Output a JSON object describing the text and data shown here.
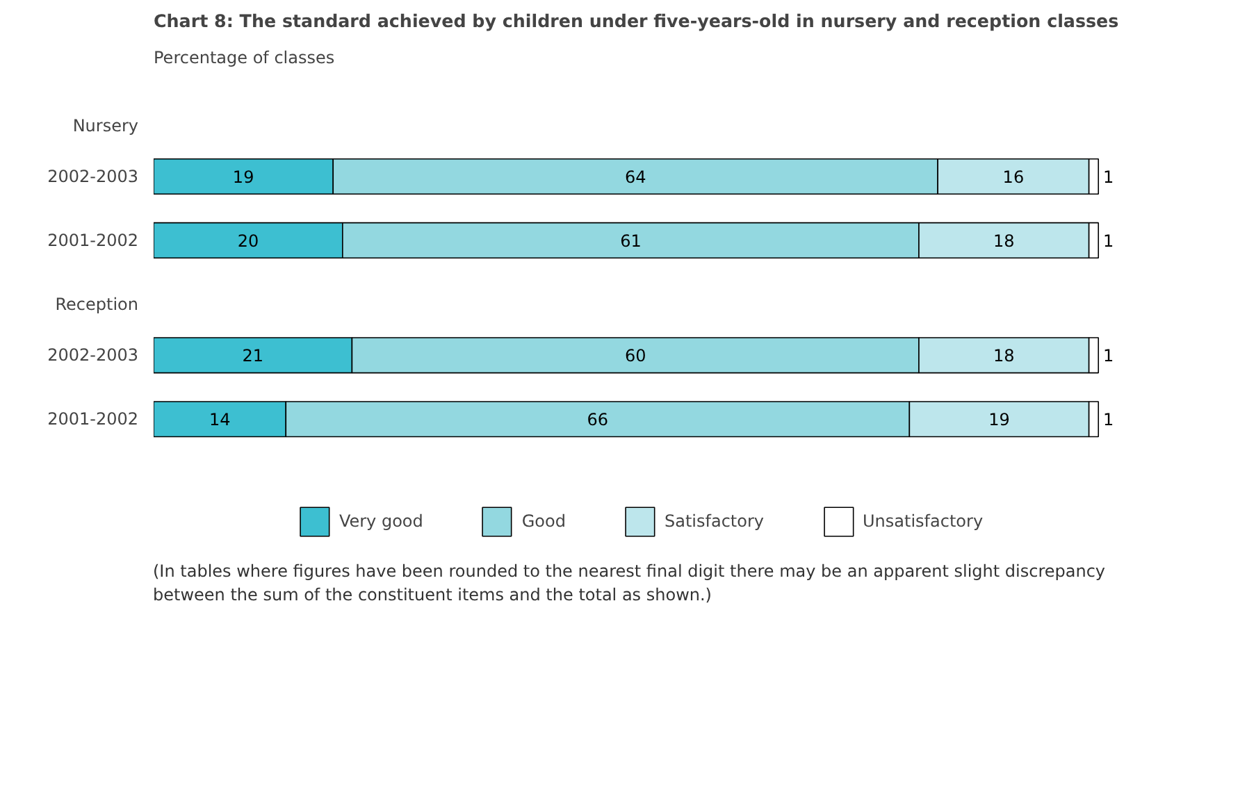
{
  "chart_data": {
    "type": "bar",
    "orientation": "horizontal",
    "stacked": true,
    "data_labels": true,
    "legend": "bottom",
    "grid": false,
    "title": "Chart 8:  The standard achieved by children under five-years-old in nursery and reception classes",
    "ylabel": "Percentage of classes",
    "categories": [
      "2002-2003",
      "2001-2002",
      "2002-2003",
      "2001-2002"
    ],
    "series": [
      {
        "name": "Very good",
        "color": "#3dbfd1",
        "values": [
          19,
          20,
          21,
          14
        ]
      },
      {
        "name": "Good",
        "color": "#93d8e0",
        "values": [
          64,
          61,
          60,
          66
        ]
      },
      {
        "name": "Satisfactory",
        "color": "#bde6ec",
        "values": [
          16,
          18,
          18,
          19
        ]
      },
      {
        "name": "Unsatisfactory",
        "color": "#ffffff",
        "values": [
          1,
          1,
          1,
          1
        ]
      }
    ],
    "annotations": [
      "Nursery",
      "Reception",
      "(In tables where figures have been rounded to the nearest final digit there may be an apparent slight discrepancy between the sum of the constituent items and the total as shown.)"
    ]
  }
}
